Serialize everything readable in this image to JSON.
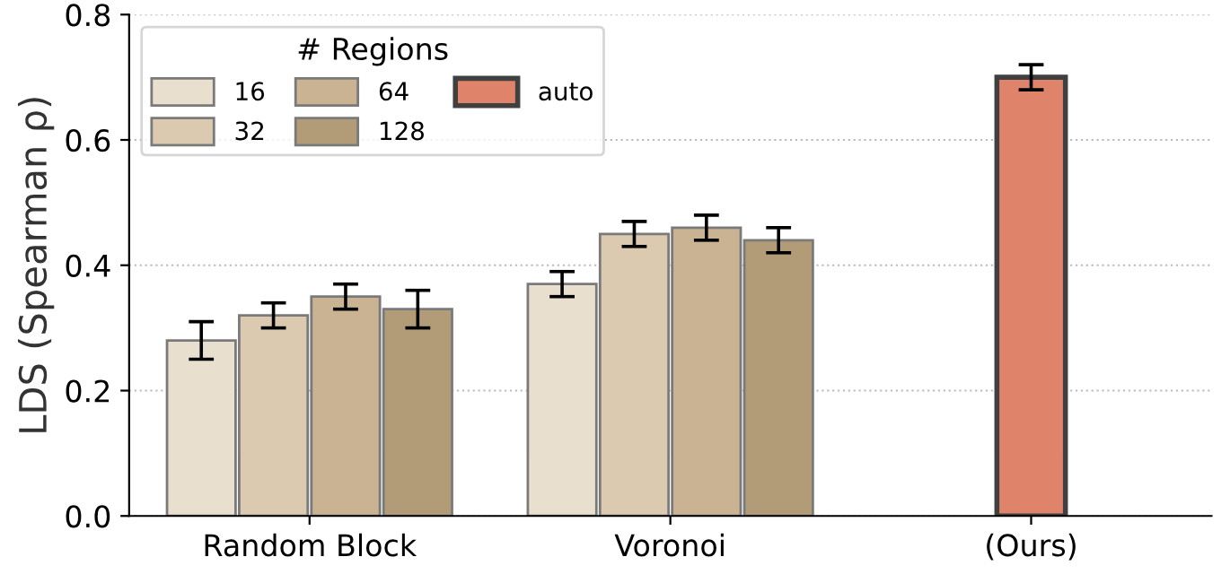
{
  "chart_data": {
    "type": "bar",
    "ylabel": "LDS (Spearman ρ)",
    "legend_title": "# Regions",
    "legend": "top left",
    "grid": "y",
    "categories": [
      "Random Block",
      "Voronoi",
      "(Ours)"
    ],
    "ylim": [
      0,
      0.8
    ],
    "yticks": [
      {
        "value": 0,
        "label": "0.0"
      },
      {
        "value": 0.2,
        "label": "0.2"
      },
      {
        "value": 0.4,
        "label": "0.4"
      },
      {
        "value": 0.6,
        "label": "0.6"
      },
      {
        "value": 0.8,
        "label": "0.8"
      }
    ],
    "series": [
      {
        "name": "16",
        "color": "#e9dfcf",
        "values": [
          0.28,
          0.37,
          null
        ],
        "errors": [
          0.03,
          0.02,
          null
        ]
      },
      {
        "name": "32",
        "color": "#dbc9b0",
        "values": [
          0.32,
          0.45,
          null
        ],
        "errors": [
          0.02,
          0.02,
          null
        ]
      },
      {
        "name": "64",
        "color": "#c9b393",
        "values": [
          0.35,
          0.46,
          null
        ],
        "errors": [
          0.02,
          0.02,
          null
        ]
      },
      {
        "name": "128",
        "color": "#b29c78",
        "values": [
          0.33,
          0.44,
          null
        ],
        "errors": [
          0.03,
          0.02,
          null
        ]
      },
      {
        "name": "auto",
        "color": "#e0836b",
        "values": [
          null,
          null,
          0.7
        ],
        "errors": [
          null,
          null,
          0.02
        ]
      }
    ]
  }
}
